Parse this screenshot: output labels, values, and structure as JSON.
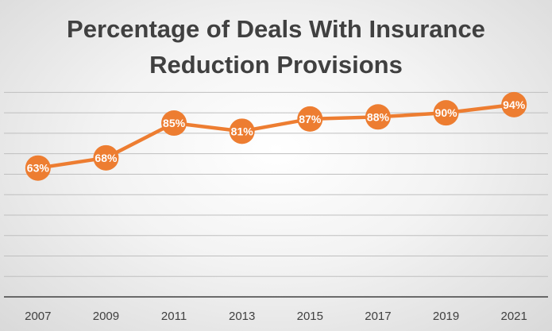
{
  "chart_data": {
    "type": "line",
    "title_lines": [
      "Percentage of Deals With Insurance",
      "Reduction Provisions"
    ],
    "categories": [
      "2007",
      "2009",
      "2011",
      "2013",
      "2015",
      "2017",
      "2019",
      "2021"
    ],
    "series": [
      {
        "values": [
          63,
          68,
          85,
          81,
          87,
          88,
          90,
          94
        ],
        "data_labels": [
          "63%",
          "68%",
          "85%",
          "81%",
          "87%",
          "88%",
          "90%",
          "94%"
        ],
        "color": "#ED7D31"
      }
    ],
    "ylim": [
      0,
      100
    ],
    "y_axis_labels_visible": false,
    "gridlines": true,
    "legend": "none"
  }
}
